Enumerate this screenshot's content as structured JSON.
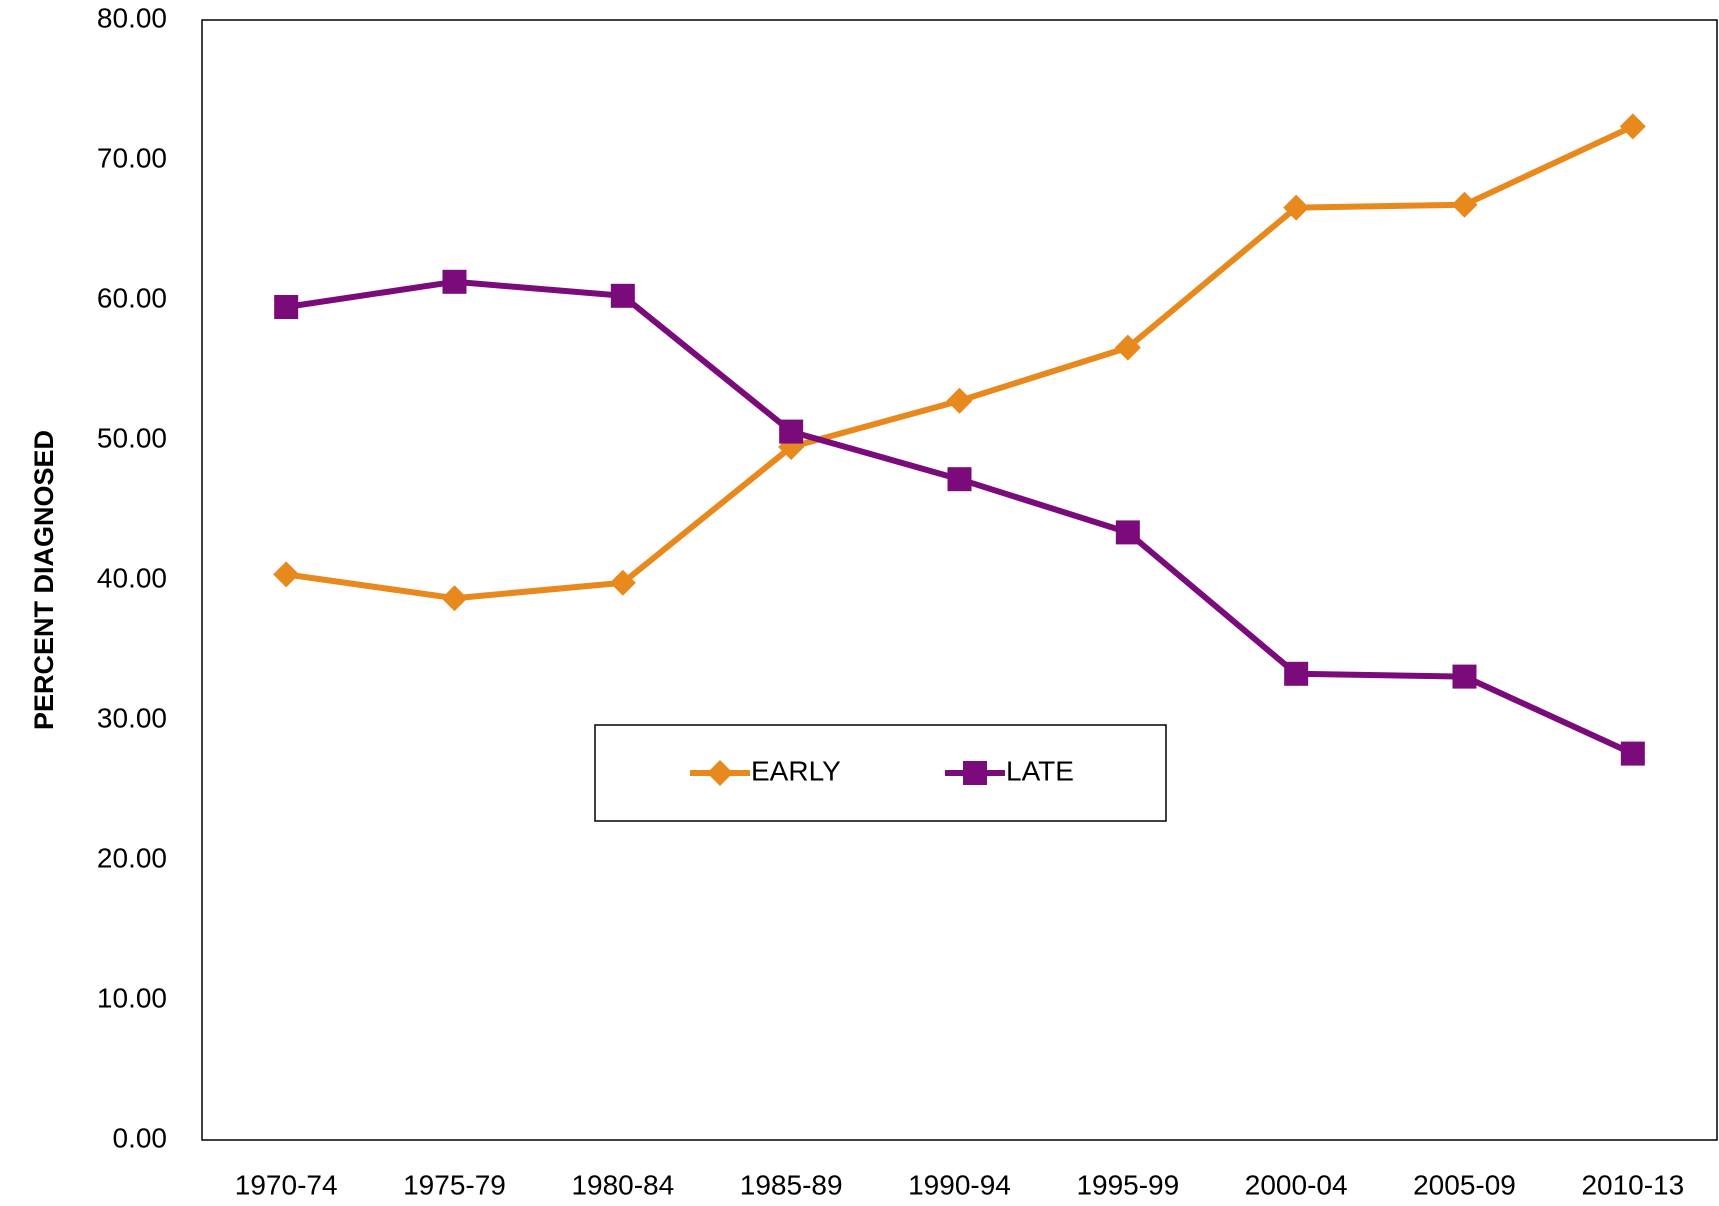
{
  "chart_data": {
    "type": "line",
    "y_label": "PERCENT DIAGNOSED",
    "categories": [
      "1970-74",
      "1975-79",
      "1980-84",
      "1985-89",
      "1990-94",
      "1995-99",
      "2000-04",
      "2005-09",
      "2010-13"
    ],
    "series": [
      {
        "name": "EARLY",
        "color": "#e8891d",
        "marker": "diamond",
        "values": [
          40.4,
          38.7,
          39.8,
          49.5,
          52.8,
          56.6,
          66.6,
          66.8,
          72.4
        ]
      },
      {
        "name": "LATE",
        "color": "#7b0a7b",
        "marker": "square",
        "values": [
          59.5,
          61.3,
          60.3,
          50.6,
          47.2,
          43.4,
          33.3,
          33.1,
          27.6
        ]
      }
    ],
    "ylim": [
      0,
      80
    ],
    "yticks": [
      {
        "value": 0,
        "label": "0.00"
      },
      {
        "value": 10,
        "label": "10.00"
      },
      {
        "value": 20,
        "label": "20.00"
      },
      {
        "value": 30,
        "label": "30.00"
      },
      {
        "value": 40,
        "label": "40.00"
      },
      {
        "value": 50,
        "label": "50.00"
      },
      {
        "value": 60,
        "label": "60.00"
      },
      {
        "value": 70,
        "label": "70.00"
      },
      {
        "value": 80,
        "label": "80.00"
      }
    ],
    "grid": false,
    "legend": "center"
  }
}
